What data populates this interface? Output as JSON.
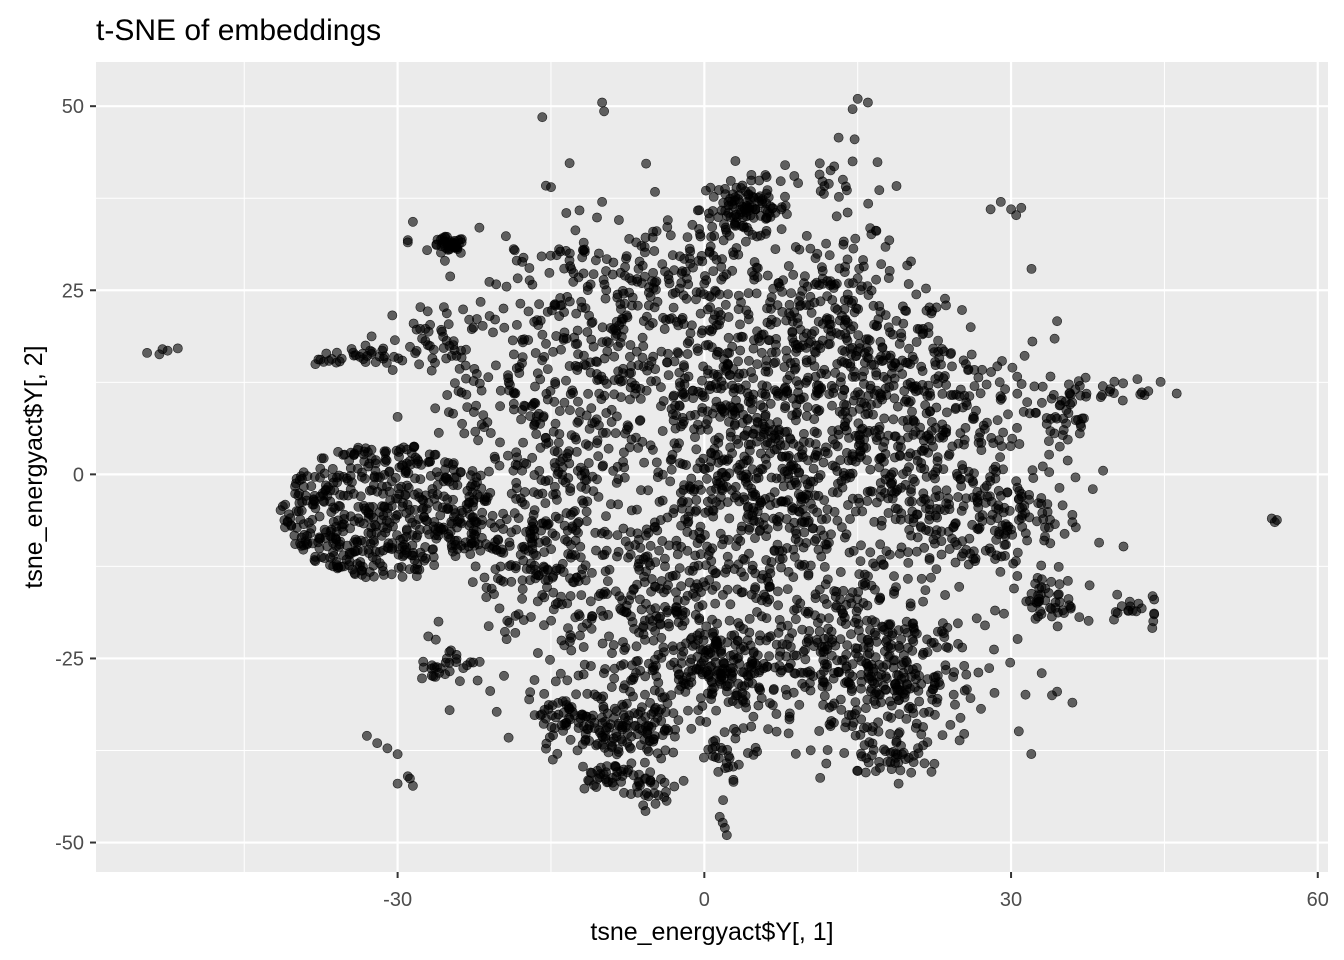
{
  "chart_data": {
    "type": "scatter",
    "title": "t-SNE of embeddings",
    "xlabel": "tsne_energyact$Y[, 1]",
    "ylabel": "tsne_energyact$Y[, 2]",
    "xlim": [
      -59.5,
      61
    ],
    "ylim": [
      -54,
      56
    ],
    "x_ticks": [
      -30,
      0,
      30,
      60
    ],
    "y_ticks": [
      -50,
      -25,
      0,
      25,
      50
    ],
    "x_tick_labels": [
      "-30",
      "0",
      "30",
      "60"
    ],
    "y_tick_labels": [
      "-50",
      "-25",
      "0",
      "25",
      "50"
    ],
    "grid": true,
    "point_color": "#000000",
    "point_alpha": 0.6,
    "panel_background": "#ebebeb",
    "clusters": [
      {
        "cx": -31,
        "cy": -5,
        "sx": 5.5,
        "sy": 5.5,
        "n": 520,
        "shape": "disk",
        "r": 10
      },
      {
        "cx": 4,
        "cy": 36,
        "sx": 2.2,
        "sy": 2.0,
        "n": 120
      },
      {
        "cx": -25,
        "cy": 31,
        "sx": 0.8,
        "sy": 0.6,
        "n": 40
      },
      {
        "cx": 7,
        "cy": 0,
        "sx": 9,
        "sy": 11,
        "n": 900
      },
      {
        "cx": -5,
        "cy": -20,
        "sx": 6,
        "sy": 8,
        "n": 350
      },
      {
        "cx": 15,
        "cy": -25,
        "sx": 6,
        "sy": 6,
        "n": 260
      },
      {
        "cx": 0,
        "cy": 20,
        "sx": 8,
        "sy": 8,
        "n": 300
      },
      {
        "cx": -15,
        "cy": 10,
        "sx": 5,
        "sy": 9,
        "n": 260
      },
      {
        "cx": -17,
        "cy": -10,
        "sx": 3,
        "sy": 5,
        "n": 160
      },
      {
        "cx": -12,
        "cy": -34,
        "sx": 2.5,
        "sy": 2,
        "n": 90
      },
      {
        "cx": -6,
        "cy": -35,
        "sx": 2,
        "sy": 2,
        "n": 70
      },
      {
        "cx": 2,
        "cy": -28,
        "sx": 3,
        "sy": 2.5,
        "n": 120
      },
      {
        "cx": 18,
        "cy": -28,
        "sx": 4,
        "sy": 4,
        "n": 130
      },
      {
        "cx": 25,
        "cy": -4,
        "sx": 5,
        "sy": 7,
        "n": 170
      },
      {
        "cx": 30,
        "cy": -6,
        "sx": 3,
        "sy": 3,
        "n": 60
      },
      {
        "cx": 34,
        "cy": -17,
        "sx": 1.5,
        "sy": 2,
        "n": 50
      },
      {
        "cx": 34,
        "cy": 8,
        "sx": 2.5,
        "sy": 4,
        "n": 50
      },
      {
        "cx": -33,
        "cy": 16,
        "sx": 2.5,
        "sy": 1,
        "n": 40
      },
      {
        "cx": -26,
        "cy": 18,
        "sx": 2,
        "sy": 3,
        "n": 40
      },
      {
        "cx": -8,
        "cy": 25,
        "sx": 5,
        "sy": 4,
        "n": 110
      },
      {
        "cx": 14,
        "cy": 22,
        "sx": 4,
        "sy": 5,
        "n": 140
      },
      {
        "cx": -9,
        "cy": -41,
        "sx": 1.8,
        "sy": 1,
        "n": 35
      },
      {
        "cx": -5,
        "cy": -43,
        "sx": 1.2,
        "sy": 1,
        "n": 25
      },
      {
        "cx": 2,
        "cy": -38,
        "sx": 1.2,
        "sy": 1.5,
        "n": 25
      },
      {
        "cx": 18,
        "cy": -38,
        "sx": 2,
        "sy": 1.5,
        "n": 40
      },
      {
        "cx": -25,
        "cy": -26,
        "sx": 1.5,
        "sy": 1.5,
        "n": 30
      },
      {
        "cx": 13,
        "cy": 40,
        "sx": 3,
        "sy": 3,
        "n": 25
      },
      {
        "cx": 40,
        "cy": 11,
        "sx": 3,
        "sy": 1,
        "n": 20
      },
      {
        "cx": 42,
        "cy": -18,
        "sx": 1.5,
        "sy": 1.5,
        "n": 15
      },
      {
        "cx": 20,
        "cy": 10,
        "sx": 5,
        "sy": 6,
        "n": 180
      }
    ],
    "points": [
      [
        -54.5,
        16.5
      ],
      [
        -53,
        17
      ],
      [
        -52.5,
        16.8
      ],
      [
        -51.5,
        17.1
      ],
      [
        -53.3,
        16.3
      ],
      [
        -30,
        7.8
      ],
      [
        -28.5,
        34.3
      ],
      [
        -29,
        31.5
      ],
      [
        -29,
        31.8
      ],
      [
        -10,
        50.5
      ],
      [
        -9.8,
        49.3
      ],
      [
        -5.7,
        42.2
      ],
      [
        15,
        51
      ],
      [
        16,
        50.5
      ],
      [
        14.5,
        49.6
      ],
      [
        14.7,
        45.5
      ],
      [
        14.5,
        42.5
      ],
      [
        -15.5,
        39.2
      ],
      [
        -15,
        39
      ],
      [
        -13.5,
        35.5
      ],
      [
        -10,
        37
      ],
      [
        30,
        36
      ],
      [
        30.5,
        35.2
      ],
      [
        29,
        37
      ],
      [
        31,
        36.2
      ],
      [
        28,
        36
      ],
      [
        32,
        27.9
      ],
      [
        34.5,
        20.8
      ],
      [
        55.5,
        -6
      ],
      [
        56,
        -6.2
      ],
      [
        55.8,
        -6.5
      ],
      [
        41,
        -9.8
      ],
      [
        -33,
        -35.5
      ],
      [
        -32,
        -36.5
      ],
      [
        -31,
        -37.2
      ],
      [
        -30,
        -38
      ],
      [
        -29,
        -41
      ],
      [
        -28.8,
        -41.3
      ],
      [
        -28.5,
        -42.3
      ],
      [
        -30,
        -42
      ],
      [
        20,
        -38.5
      ],
      [
        19.5,
        -37.8
      ],
      [
        20.5,
        -38.2
      ],
      [
        19,
        -42
      ],
      [
        34.5,
        -29.5
      ],
      [
        34,
        -30
      ],
      [
        36,
        -31
      ],
      [
        33,
        -27
      ],
      [
        1.5,
        -46.5
      ],
      [
        2,
        -48
      ],
      [
        2.2,
        -49
      ],
      [
        1.8,
        -47.3
      ],
      [
        44,
        -17
      ],
      [
        44,
        -19
      ],
      [
        41.5,
        -18.5
      ],
      [
        39,
        0.5
      ],
      [
        38,
        -2
      ],
      [
        36,
        -5.5
      ],
      [
        36,
        -6.5
      ],
      [
        -21.5,
        -14
      ],
      [
        -26,
        -20
      ],
      [
        -27,
        -22
      ],
      [
        -22,
        33.5
      ],
      [
        -23,
        21
      ],
      [
        -21,
        21.5
      ]
    ]
  }
}
